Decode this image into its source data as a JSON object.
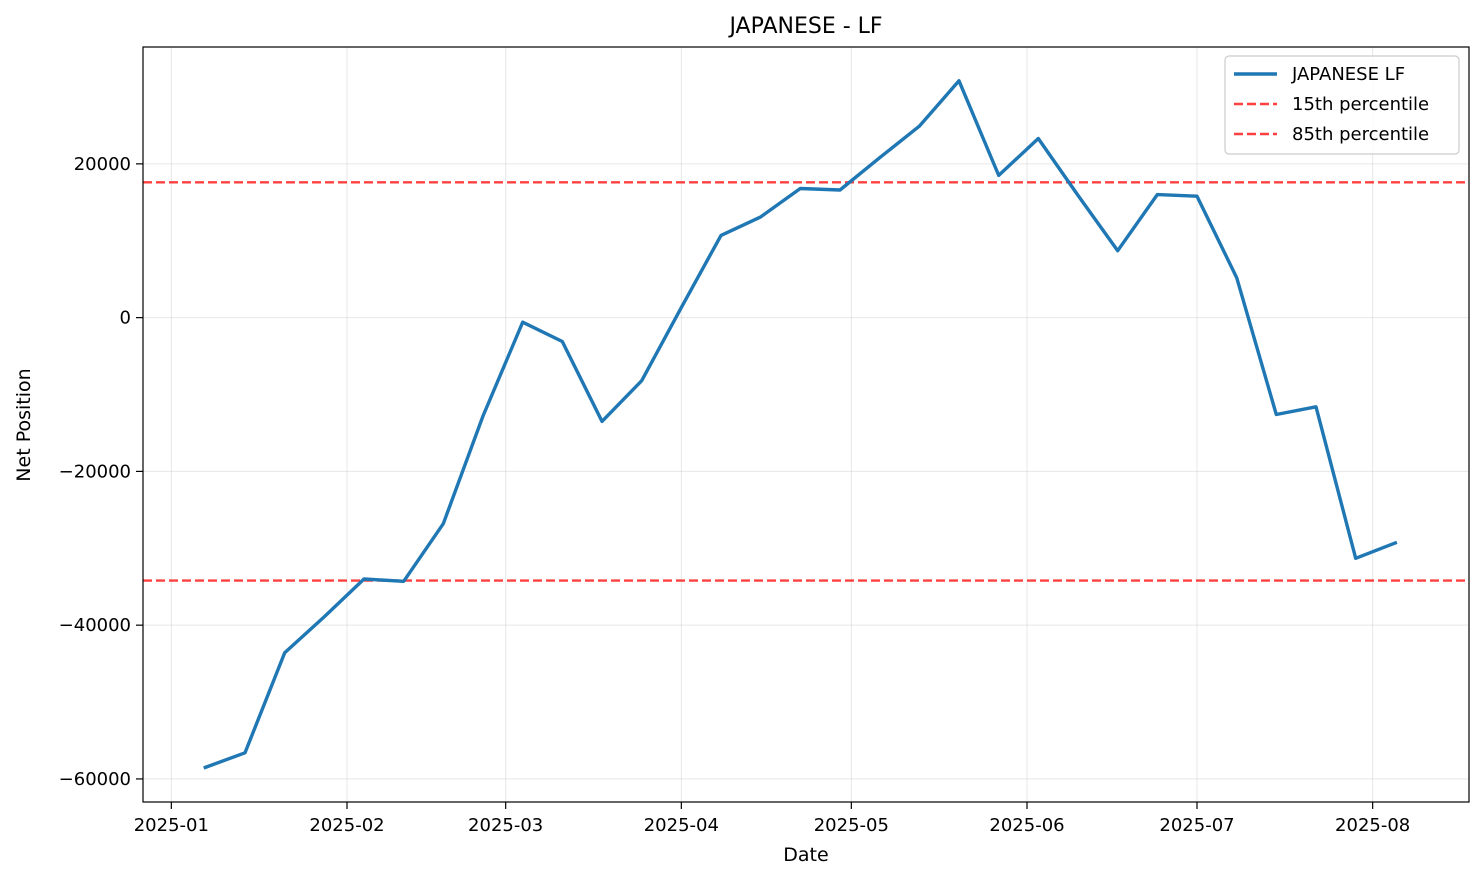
{
  "chart_data": {
    "type": "line",
    "title": "JAPANESE - LF",
    "xlabel": "Date",
    "ylabel": "Net Position",
    "x_ticks": [
      "2025-01",
      "2025-02",
      "2025-03",
      "2025-04",
      "2025-05",
      "2025-06",
      "2025-07",
      "2025-08"
    ],
    "y_ticks": [
      -60000,
      -40000,
      -20000,
      0,
      20000
    ],
    "xlim": [
      "2024-12-27",
      "2025-08-18"
    ],
    "ylim": [
      -63000,
      35200
    ],
    "grid": true,
    "legend_position": "top-right",
    "x": [
      "2025-01-07",
      "2025-01-14",
      "2025-01-21",
      "2025-01-28",
      "2025-02-04",
      "2025-02-11",
      "2025-02-18",
      "2025-02-25",
      "2025-03-04",
      "2025-03-11",
      "2025-03-18",
      "2025-03-25",
      "2025-04-01",
      "2025-04-08",
      "2025-04-15",
      "2025-04-22",
      "2025-04-29",
      "2025-05-06",
      "2025-05-13",
      "2025-05-20",
      "2025-05-27",
      "2025-06-03",
      "2025-06-10",
      "2025-06-17",
      "2025-06-24",
      "2025-07-01",
      "2025-07-08",
      "2025-07-15",
      "2025-07-22",
      "2025-07-29",
      "2025-08-05"
    ],
    "series": [
      {
        "name": "JAPANESE LF",
        "color": "#1f77b4",
        "style": "solid",
        "values": [
          -58500,
          -56600,
          -43600,
          -38900,
          -34000,
          -34300,
          -26800,
          -12800,
          -600,
          -3100,
          -13500,
          -8200,
          1300,
          10700,
          13100,
          16800,
          16600,
          20800,
          24900,
          30800,
          18500,
          23300,
          15900,
          8700,
          16000,
          15800,
          5200,
          -12600,
          -11600,
          -31300,
          -29300
        ]
      },
      {
        "name": "15th percentile",
        "color": "#ff0000",
        "style": "dashed",
        "value": -34200
      },
      {
        "name": "85th percentile",
        "color": "#ff0000",
        "style": "dashed",
        "value": 17600
      }
    ]
  }
}
